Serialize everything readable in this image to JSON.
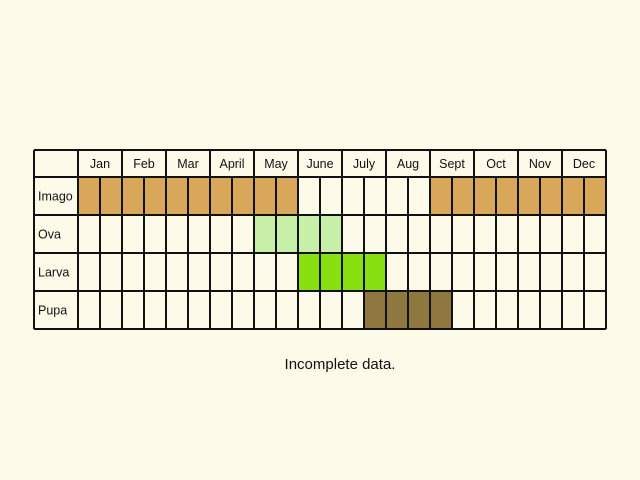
{
  "chart_data": {
    "type": "table",
    "months": [
      "Jan",
      "Feb",
      "Mar",
      "April",
      "May",
      "June",
      "July",
      "Aug",
      "Sept",
      "Oct",
      "Nov",
      "Dec"
    ],
    "subdivisions_per_month": 2,
    "stages": [
      {
        "name": "Imago",
        "color": "#d9a75a",
        "active_half_months": [
          1,
          2,
          3,
          4,
          5,
          6,
          7,
          8,
          9,
          10,
          17,
          18,
          19,
          20,
          21,
          22,
          23,
          24
        ]
      },
      {
        "name": "Ova",
        "color": "#c7efa8",
        "active_half_months": [
          9,
          10,
          11,
          12
        ]
      },
      {
        "name": "Larva",
        "color": "#88e010",
        "active_half_months": [
          11,
          12,
          13,
          14
        ]
      },
      {
        "name": "Pupa",
        "color": "#8e7840",
        "active_half_months": [
          14,
          15,
          16,
          17
        ]
      }
    ]
  },
  "caption": "Incomplete data."
}
